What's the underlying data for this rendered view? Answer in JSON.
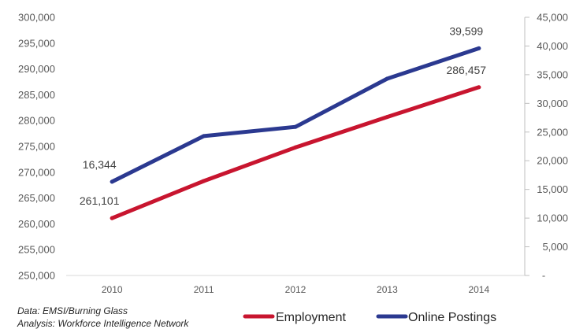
{
  "chart_data": {
    "type": "line",
    "categories": [
      "2010",
      "2011",
      "2012",
      "2013",
      "2014"
    ],
    "y_left": {
      "ylim": [
        250000,
        300000
      ],
      "ticks": [
        250000,
        255000,
        260000,
        265000,
        270000,
        275000,
        280000,
        285000,
        290000,
        295000,
        300000
      ],
      "tick_labels": [
        "250,000",
        "255,000",
        "260,000",
        "265,000",
        "270,000",
        "275,000",
        "280,000",
        "285,000",
        "290,000",
        "295,000",
        "300,000"
      ]
    },
    "y_right": {
      "ylim": [
        0,
        45000
      ],
      "ticks": [
        0,
        5000,
        10000,
        15000,
        20000,
        25000,
        30000,
        35000,
        40000,
        45000
      ],
      "tick_labels": [
        "-",
        "5,000",
        "10,000",
        "15,000",
        "20,000",
        "25,000",
        "30,000",
        "35,000",
        "40,000",
        "45,000"
      ]
    },
    "series": [
      {
        "name": "Employment",
        "y_axis": "left",
        "color": "#c8152f",
        "values": [
          261101,
          268300,
          274800,
          280700,
          286457
        ]
      },
      {
        "name": "Online Postings",
        "y_axis": "right",
        "color": "#2b3990",
        "values": [
          16344,
          24300,
          25900,
          34300,
          39599
        ]
      }
    ],
    "data_labels": [
      {
        "series": 1,
        "index": 0,
        "text": "16,344"
      },
      {
        "series": 0,
        "index": 0,
        "text": "261,101"
      },
      {
        "series": 1,
        "index": 4,
        "text": "39,599"
      },
      {
        "series": 0,
        "index": 4,
        "text": "286,457"
      }
    ],
    "grid": false,
    "legend": "bottom"
  },
  "notes": [
    "Data: EMSI/Burning Glass",
    "Analysis: Workforce Intelligence Network"
  ]
}
